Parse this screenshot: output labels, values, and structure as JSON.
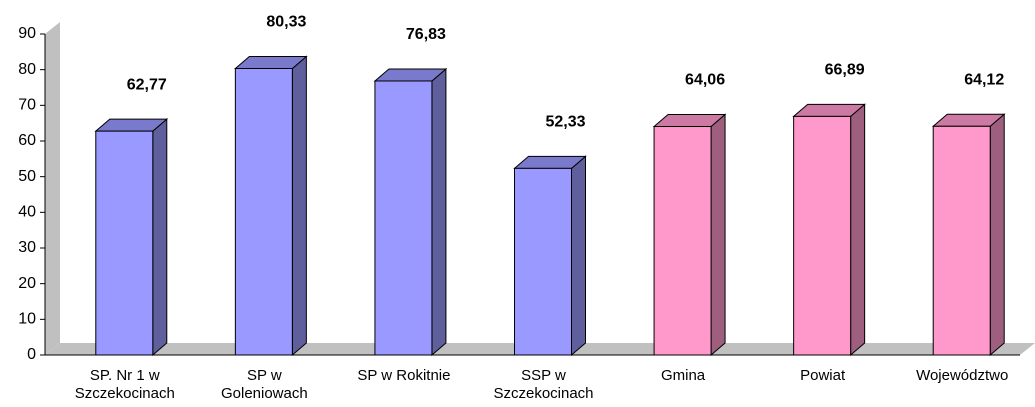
{
  "chart_data": {
    "type": "bar3d",
    "categories": [
      "SP. Nr 1 w Szczekocinach",
      "SP w Goleniowach",
      "SP w Rokitnie",
      "SSP w Szczekocinach",
      "Gmina",
      "Powiat",
      "Województwo"
    ],
    "values": [
      62.77,
      80.33,
      76.83,
      52.33,
      64.06,
      66.89,
      64.12
    ],
    "value_labels": [
      "62,77",
      "80,33",
      "76,83",
      "52,33",
      "64,06",
      "66,89",
      "64,12"
    ],
    "colors": [
      "#9999ff",
      "#9999ff",
      "#9999ff",
      "#9999ff",
      "#ff99cc",
      "#ff99cc",
      "#ff99cc"
    ],
    "ylim": [
      0,
      90
    ],
    "yticks": [
      0,
      10,
      20,
      30,
      40,
      50,
      60,
      70,
      80,
      90
    ]
  }
}
